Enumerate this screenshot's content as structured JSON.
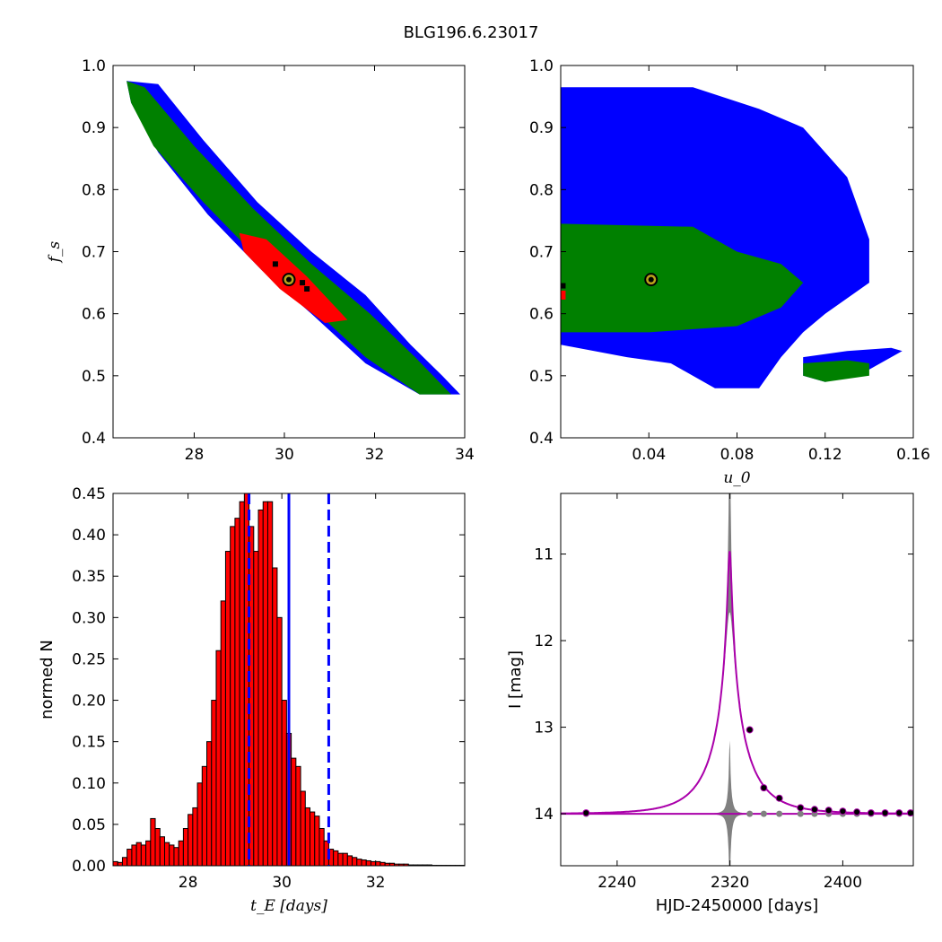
{
  "figure": {
    "title": "BLG196.6.23017"
  },
  "chart_data": [
    {
      "type": "heatmap",
      "panel": "top-left",
      "xlabel": "",
      "ylabel": "f_s",
      "xlim": [
        26.2,
        34
      ],
      "ylim": [
        0.4,
        1.0
      ],
      "xticks": [
        28,
        30,
        32,
        34
      ],
      "yticks": [
        0.4,
        0.5,
        0.6,
        0.7,
        0.8,
        0.9,
        1.0
      ],
      "regions": [
        {
          "level": "outer",
          "color": "#0000ff",
          "polygon": [
            [
              26.5,
              0.975
            ],
            [
              27.2,
              0.97
            ],
            [
              28.2,
              0.88
            ],
            [
              29.4,
              0.78
            ],
            [
              30.6,
              0.7
            ],
            [
              31.8,
              0.63
            ],
            [
              32.8,
              0.55
            ],
            [
              33.5,
              0.5
            ],
            [
              33.9,
              0.47
            ],
            [
              33.0,
              0.47
            ],
            [
              31.8,
              0.52
            ],
            [
              30.6,
              0.6
            ],
            [
              29.5,
              0.67
            ],
            [
              28.3,
              0.76
            ],
            [
              27.2,
              0.86
            ],
            [
              26.6,
              0.94
            ]
          ]
        },
        {
          "level": "middle",
          "color": "#008000",
          "polygon": [
            [
              26.5,
              0.975
            ],
            [
              26.9,
              0.965
            ],
            [
              28.0,
              0.87
            ],
            [
              29.3,
              0.77
            ],
            [
              30.6,
              0.68
            ],
            [
              31.9,
              0.6
            ],
            [
              32.9,
              0.53
            ],
            [
              33.7,
              0.47
            ],
            [
              33.0,
              0.47
            ],
            [
              31.8,
              0.53
            ],
            [
              30.6,
              0.61
            ],
            [
              29.4,
              0.69
            ],
            [
              28.2,
              0.78
            ],
            [
              27.1,
              0.87
            ],
            [
              26.6,
              0.94
            ]
          ]
        },
        {
          "level": "inner",
          "color": "#ff0000",
          "polygon": [
            [
              29.0,
              0.73
            ],
            [
              29.6,
              0.72
            ],
            [
              30.5,
              0.66
            ],
            [
              31.4,
              0.59
            ],
            [
              30.9,
              0.585
            ],
            [
              29.9,
              0.64
            ],
            [
              29.1,
              0.7
            ]
          ]
        }
      ],
      "black_cells": [
        [
          29.8,
          0.68
        ],
        [
          30.4,
          0.65
        ],
        [
          30.5,
          0.64
        ]
      ],
      "best_fit": {
        "x": 30.1,
        "y": 0.655
      }
    },
    {
      "type": "heatmap",
      "panel": "top-right",
      "xlabel": "u_0",
      "ylabel": "",
      "xlim": [
        0.0,
        0.16
      ],
      "ylim": [
        0.4,
        1.0
      ],
      "xticks": [
        0.04,
        0.08,
        0.12,
        0.16
      ],
      "xtick_labels": [
        "0.04",
        "0.08",
        "0.12",
        "0.16"
      ],
      "yticks": [
        0.4,
        0.5,
        0.6,
        0.7,
        0.8,
        0.9,
        1.0
      ],
      "regions": [
        {
          "level": "outer",
          "color": "#0000ff",
          "polygon": [
            [
              0.0,
              0.965
            ],
            [
              0.06,
              0.965
            ],
            [
              0.09,
              0.93
            ],
            [
              0.11,
              0.9
            ],
            [
              0.13,
              0.82
            ],
            [
              0.14,
              0.72
            ],
            [
              0.14,
              0.65
            ],
            [
              0.12,
              0.6
            ],
            [
              0.11,
              0.57
            ],
            [
              0.1,
              0.53
            ],
            [
              0.09,
              0.48
            ],
            [
              0.07,
              0.48
            ],
            [
              0.05,
              0.52
            ],
            [
              0.03,
              0.53
            ],
            [
              0.0,
              0.55
            ]
          ]
        },
        {
          "level": "outer-island",
          "color": "#0000ff",
          "polygon": [
            [
              0.11,
              0.53
            ],
            [
              0.13,
              0.54
            ],
            [
              0.15,
              0.545
            ],
            [
              0.155,
              0.54
            ],
            [
              0.14,
              0.51
            ],
            [
              0.12,
              0.49
            ],
            [
              0.11,
              0.5
            ]
          ]
        },
        {
          "level": "middle",
          "color": "#008000",
          "polygon": [
            [
              0.0,
              0.745
            ],
            [
              0.06,
              0.74
            ],
            [
              0.08,
              0.7
            ],
            [
              0.1,
              0.68
            ],
            [
              0.11,
              0.65
            ],
            [
              0.1,
              0.61
            ],
            [
              0.08,
              0.58
            ],
            [
              0.04,
              0.57
            ],
            [
              0.0,
              0.57
            ]
          ]
        },
        {
          "level": "middle-island",
          "color": "#008000",
          "polygon": [
            [
              0.11,
              0.52
            ],
            [
              0.13,
              0.525
            ],
            [
              0.14,
              0.52
            ],
            [
              0.14,
              0.5
            ],
            [
              0.12,
              0.49
            ],
            [
              0.11,
              0.5
            ]
          ]
        }
      ],
      "black_cells": [
        [
          0.001,
          0.645
        ]
      ],
      "red_cells": [
        [
          0.001,
          0.63
        ]
      ],
      "best_fit": {
        "x": 0.041,
        "y": 0.655
      }
    },
    {
      "type": "bar",
      "panel": "bottom-left",
      "xlabel": "t_E [days]",
      "ylabel": "normed N",
      "xlim": [
        26.4,
        33.9
      ],
      "ylim": [
        0.0,
        0.45
      ],
      "xticks": [
        28,
        30,
        32
      ],
      "yticks": [
        0.0,
        0.05,
        0.1,
        0.15,
        0.2,
        0.25,
        0.3,
        0.35,
        0.4,
        0.45
      ],
      "bar_color": "#ff0000",
      "bin_start": 26.4,
      "bin_width": 0.1,
      "values": [
        0.005,
        0.004,
        0.01,
        0.02,
        0.025,
        0.028,
        0.025,
        0.03,
        0.057,
        0.045,
        0.035,
        0.028,
        0.025,
        0.022,
        0.03,
        0.045,
        0.062,
        0.07,
        0.1,
        0.12,
        0.15,
        0.2,
        0.26,
        0.32,
        0.38,
        0.41,
        0.42,
        0.44,
        0.45,
        0.41,
        0.38,
        0.43,
        0.44,
        0.44,
        0.36,
        0.3,
        0.2,
        0.16,
        0.13,
        0.12,
        0.09,
        0.07,
        0.065,
        0.06,
        0.045,
        0.03,
        0.02,
        0.018,
        0.015,
        0.015,
        0.012,
        0.01,
        0.008,
        0.007,
        0.006,
        0.005,
        0.005,
        0.004,
        0.003,
        0.003,
        0.002,
        0.002,
        0.002,
        0.001,
        0.001,
        0.001,
        0.001,
        0.001,
        0.0005,
        0.0005,
        0.0005,
        0.0005,
        0.0005,
        0.0005,
        0.0005
      ],
      "vlines": [
        {
          "x": 30.15,
          "style": "solid",
          "color": "#0000ff"
        },
        {
          "x": 29.3,
          "style": "dashed",
          "color": "#0000ff"
        },
        {
          "x": 31.0,
          "style": "dashed",
          "color": "#0000ff"
        }
      ]
    },
    {
      "type": "line",
      "panel": "bottom-right",
      "xlabel": "HJD-2450000 [days]",
      "ylabel": "I [mag]",
      "xlim": [
        2200,
        2450
      ],
      "ylim": [
        14.6,
        10.3
      ],
      "y_inverted": true,
      "xticks": [
        2240,
        2320,
        2400
      ],
      "yticks": [
        11,
        12,
        13,
        14
      ],
      "model": {
        "color": "#aa00aa",
        "t0": 2319.8,
        "tE": 30.1,
        "u0": 0.041,
        "fs": 0.655,
        "base": 14.0
      },
      "band_color": "#808080",
      "data_points": [
        {
          "x": 2218,
          "y": 13.99
        },
        {
          "x": 2334,
          "y": 13.03
        },
        {
          "x": 2344,
          "y": 13.7
        },
        {
          "x": 2355,
          "y": 13.82
        },
        {
          "x": 2370,
          "y": 13.93
        },
        {
          "x": 2380,
          "y": 13.95
        },
        {
          "x": 2390,
          "y": 13.96
        },
        {
          "x": 2400,
          "y": 13.97
        },
        {
          "x": 2410,
          "y": 13.98
        },
        {
          "x": 2420,
          "y": 13.99
        },
        {
          "x": 2430,
          "y": 13.99
        },
        {
          "x": 2440,
          "y": 13.99
        },
        {
          "x": 2448,
          "y": 13.99
        }
      ],
      "residual_points": [
        {
          "x": 2218,
          "y": 14.0
        },
        {
          "x": 2334,
          "y": 14.0
        },
        {
          "x": 2344,
          "y": 14.0
        },
        {
          "x": 2355,
          "y": 14.0
        },
        {
          "x": 2370,
          "y": 14.0
        },
        {
          "x": 2380,
          "y": 14.0
        },
        {
          "x": 2390,
          "y": 14.0
        },
        {
          "x": 2400,
          "y": 14.0
        },
        {
          "x": 2410,
          "y": 14.0
        },
        {
          "x": 2420,
          "y": 14.0
        },
        {
          "x": 2430,
          "y": 14.0
        },
        {
          "x": 2440,
          "y": 14.0
        }
      ]
    }
  ]
}
